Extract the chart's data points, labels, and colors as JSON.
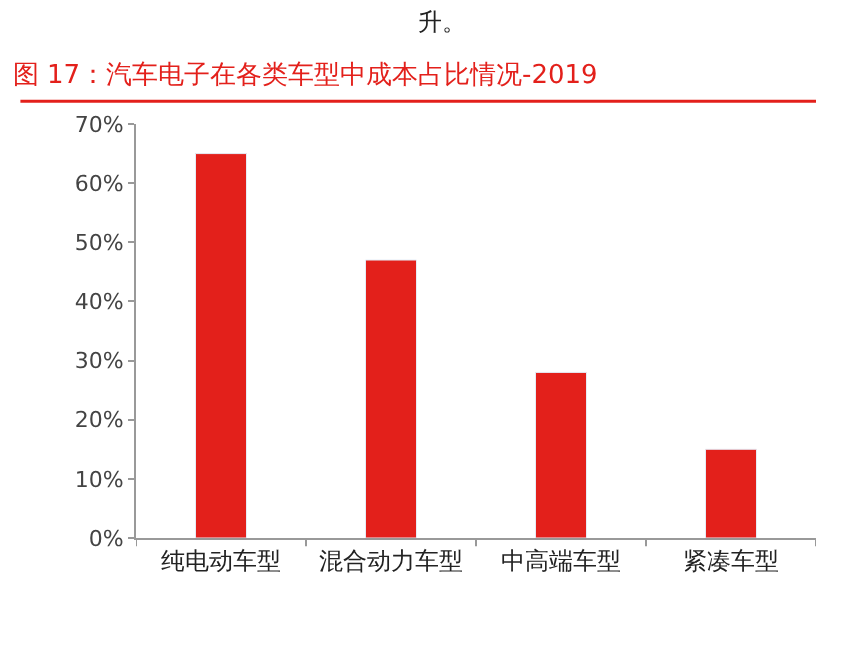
{
  "chart_data": {
    "type": "bar",
    "title": "图 17：汽车电子在各类车型中成本占比情况-2019",
    "annotations": [
      "升。"
    ],
    "categories": [
      "纯电动车型",
      "混合动力车型",
      "中高端车型",
      "紧凑车型"
    ],
    "values": [
      65,
      47,
      28,
      15
    ],
    "color": "#e3201b",
    "ylim": [
      0,
      70
    ],
    "yticks": [
      {
        "value": 0,
        "label": "0%"
      },
      {
        "value": 10,
        "label": "10%"
      },
      {
        "value": 20,
        "label": "20%"
      },
      {
        "value": 30,
        "label": "30%"
      },
      {
        "value": 40,
        "label": "40%"
      },
      {
        "value": 50,
        "label": "50%"
      },
      {
        "value": 60,
        "label": "60%"
      },
      {
        "value": 70,
        "label": "70%"
      }
    ],
    "legend": false
  }
}
